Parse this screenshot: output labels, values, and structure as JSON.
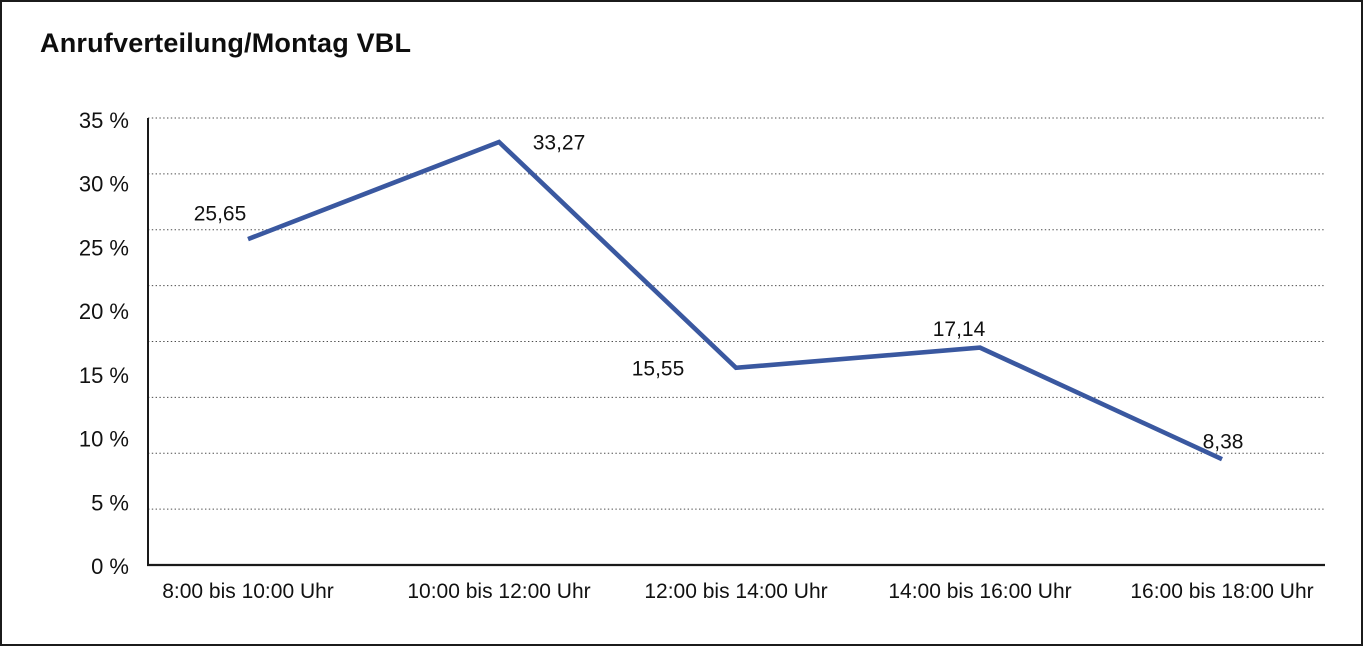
{
  "window": {
    "background": "#ffffff",
    "border_color": "#1b1b1b"
  },
  "chart_data": {
    "type": "line",
    "title": "Anrufverteilung/Montag VBL",
    "categories": [
      "8:00 bis 10:00 Uhr",
      "10:00 bis 12:00 Uhr",
      "12:00 bis 14:00 Uhr",
      "14:00 bis 16:00 Uhr",
      "16:00 bis 18:00 Uhr"
    ],
    "series": [
      {
        "name": "Anrufverteilung Montag VBL",
        "values": [
          25.65,
          33.27,
          15.55,
          17.14,
          8.38
        ],
        "value_labels": [
          "25,65",
          "33,27",
          "15,55",
          "17,14",
          "8,38"
        ],
        "color": "#3a58a0"
      }
    ],
    "xlabel": "",
    "ylabel": "",
    "y_axis": {
      "min": 0,
      "max": 35,
      "tick_step": 5,
      "unit": "%",
      "tick_labels": [
        "35 %",
        "30 %",
        "25 %",
        "20 %",
        "15 %",
        "10 %",
        "5 %",
        "0 %"
      ]
    },
    "grid": {
      "horizontal": true,
      "vertical": false,
      "style": "dotted",
      "divisions": 8,
      "color": "#4d4d4d"
    },
    "axis_color": "#1a1a1a",
    "legend_position": "none",
    "decimal_separator": ","
  }
}
